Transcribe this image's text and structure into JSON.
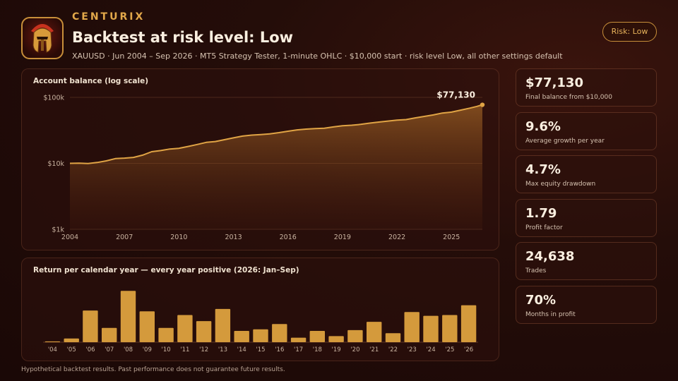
{
  "header": {
    "brand": "CENTURIX",
    "title": "Backtest at risk level: Low",
    "subtitle": "XAUUSD · Jun 2004 – Sep 2026 · MT5 Strategy Tester, 1-minute OHLC · $10,000 start · risk level Low, all other settings default",
    "risk_badge": "Risk: Low"
  },
  "logo": {
    "icon": "spartan-helmet-icon"
  },
  "stats": [
    {
      "value": "$77,130",
      "label": "Final balance from $10,000"
    },
    {
      "value": "9.6%",
      "label": "Average growth per year"
    },
    {
      "value": "4.7%",
      "label": "Max equity drawdown"
    },
    {
      "value": "1.79",
      "label": "Profit factor"
    },
    {
      "value": "24,638",
      "label": "Trades"
    },
    {
      "value": "70%",
      "label": "Months in profit"
    }
  ],
  "footer": {
    "disclaimer": "Hypothetical backtest results. Past performance does not guarantee future results."
  },
  "colors": {
    "accent": "#e2a84a",
    "bar": "#d49a3c",
    "line": "#e0a445",
    "background": "#1f0a07"
  },
  "chart_data": [
    {
      "type": "area",
      "title": "Account balance (log scale)",
      "y_scale": "log",
      "ylim": [
        1000,
        100000
      ],
      "y_ticks": [
        {
          "value": 100000,
          "label": "$100k"
        },
        {
          "value": 10000,
          "label": "$10k"
        },
        {
          "value": 1000,
          "label": "$1k"
        }
      ],
      "xlim": [
        2004.0,
        2026.7
      ],
      "x_ticks": [
        2004,
        2007,
        2010,
        2013,
        2016,
        2019,
        2022,
        2025
      ],
      "end_label": "$77,130",
      "series": [
        {
          "x": [
            2004.0,
            2004.5,
            2005.0,
            2005.5,
            2006.0,
            2006.5,
            2007.0,
            2007.5,
            2008.0,
            2008.5,
            2009.0,
            2009.5,
            2010.0,
            2010.5,
            2011.0,
            2011.5,
            2012.0,
            2012.5,
            2013.0,
            2013.5,
            2014.0,
            2014.5,
            2015.0,
            2015.5,
            2016.0,
            2016.5,
            2017.0,
            2017.5,
            2018.0,
            2018.5,
            2019.0,
            2019.5,
            2020.0,
            2020.5,
            2021.0,
            2021.5,
            2022.0,
            2022.5,
            2023.0,
            2023.5,
            2024.0,
            2024.5,
            2025.0,
            2025.5,
            2026.0,
            2026.4,
            2026.7
          ],
          "y": [
            10000,
            10050,
            9950,
            10300,
            10900,
            11800,
            12000,
            12300,
            13300,
            15000,
            15600,
            16500,
            16900,
            18000,
            19300,
            20800,
            21400,
            22800,
            24300,
            25900,
            26800,
            27300,
            28000,
            29200,
            30700,
            32100,
            33000,
            33700,
            34100,
            35600,
            37200,
            37800,
            38900,
            40700,
            42200,
            43700,
            45300,
            46000,
            48800,
            51400,
            54200,
            57900,
            59800,
            64000,
            68600,
            73000,
            77130
          ]
        }
      ]
    },
    {
      "type": "bar",
      "title": "Return per calendar year — every year positive (2026: Jan–Sep)",
      "categories": [
        "'04",
        "'05",
        "'06",
        "'07",
        "'08",
        "'09",
        "'10",
        "'11",
        "'12",
        "'13",
        "'14",
        "'15",
        "'16",
        "'17",
        "'18",
        "'19",
        "'20",
        "'21",
        "'22",
        "'23",
        "'24",
        "'25",
        "'26"
      ],
      "values": [
        0.5,
        2.5,
        21,
        9.5,
        34,
        20.5,
        9.5,
        18,
        14,
        22,
        7.5,
        8.5,
        12,
        3,
        7.5,
        4,
        8,
        13.5,
        6,
        20,
        17.5,
        18,
        24.5
      ],
      "ylim": [
        0,
        36
      ]
    }
  ]
}
